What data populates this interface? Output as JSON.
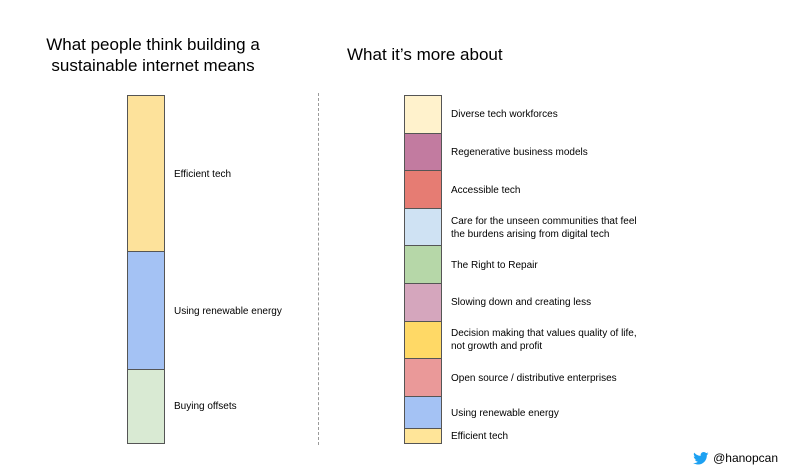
{
  "left": {
    "heading": "What people think building a\nsustainable internet means",
    "segments": [
      {
        "label": "Efficient tech",
        "color": "#fde29b",
        "share": 45
      },
      {
        "label": "Using renewable energy",
        "color": "#a4c2f4",
        "share": 34
      },
      {
        "label": "Buying offsets",
        "color": "#d9ead3",
        "share": 21
      }
    ]
  },
  "right": {
    "heading": "What it’s more about",
    "segments": [
      {
        "label": "Diverse tech workforces",
        "color": "#fff2cc",
        "share": 11
      },
      {
        "label": "Regenerative business models",
        "color": "#c27ba0",
        "share": 11
      },
      {
        "label": "Accessible tech",
        "color": "#e67c73",
        "share": 11
      },
      {
        "label": "Care for the unseen communities that feel\nthe burdens arising from digital tech",
        "color": "#cfe2f3",
        "share": 11
      },
      {
        "label": "The Right to Repair",
        "color": "#b6d7a8",
        "share": 11
      },
      {
        "label": "Slowing down and creating less",
        "color": "#d5a6bd",
        "share": 11
      },
      {
        "label": "Decision making that values quality of life,\nnot growth and profit",
        "color": "#ffd966",
        "share": 11
      },
      {
        "label": "Open source / distributive enterprises",
        "color": "#ea9999",
        "share": 11
      },
      {
        "label": "Using renewable energy",
        "color": "#a4c2f4",
        "share": 9.5
      },
      {
        "label": "Efficient tech",
        "color": "#ffe599",
        "share": 4
      }
    ]
  },
  "footer": {
    "handle": "@hanopcan",
    "icon": "twitter-bird-icon",
    "icon_color": "#1da1f2"
  }
}
